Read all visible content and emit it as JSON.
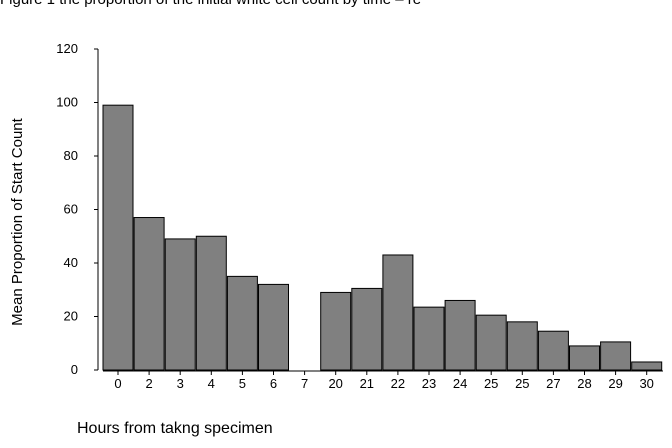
{
  "figure_title": "Figure 1 the proportion of the initial white cell count by time – re",
  "chart_data": {
    "type": "bar",
    "title": "",
    "xlabel": "Hours from takng specimen",
    "ylabel": "Mean Proportion of Start Count",
    "ylim": [
      0,
      120
    ],
    "yticks": [
      0,
      20,
      40,
      60,
      80,
      100,
      120
    ],
    "categories": [
      "0",
      "2",
      "3",
      "4",
      "5",
      "6",
      "7",
      "20",
      "21",
      "22",
      "23",
      "24",
      "25",
      "25",
      "27",
      "28",
      "29",
      "30"
    ],
    "values": [
      99,
      57,
      49,
      50,
      35,
      32,
      null,
      29,
      30.5,
      43,
      23.5,
      26,
      20.5,
      18,
      14.5,
      9,
      10.5,
      3
    ],
    "grid": false,
    "colors": {
      "bar_fill": "#808080",
      "bar_stroke": "#000000",
      "axis": "#000000"
    }
  }
}
